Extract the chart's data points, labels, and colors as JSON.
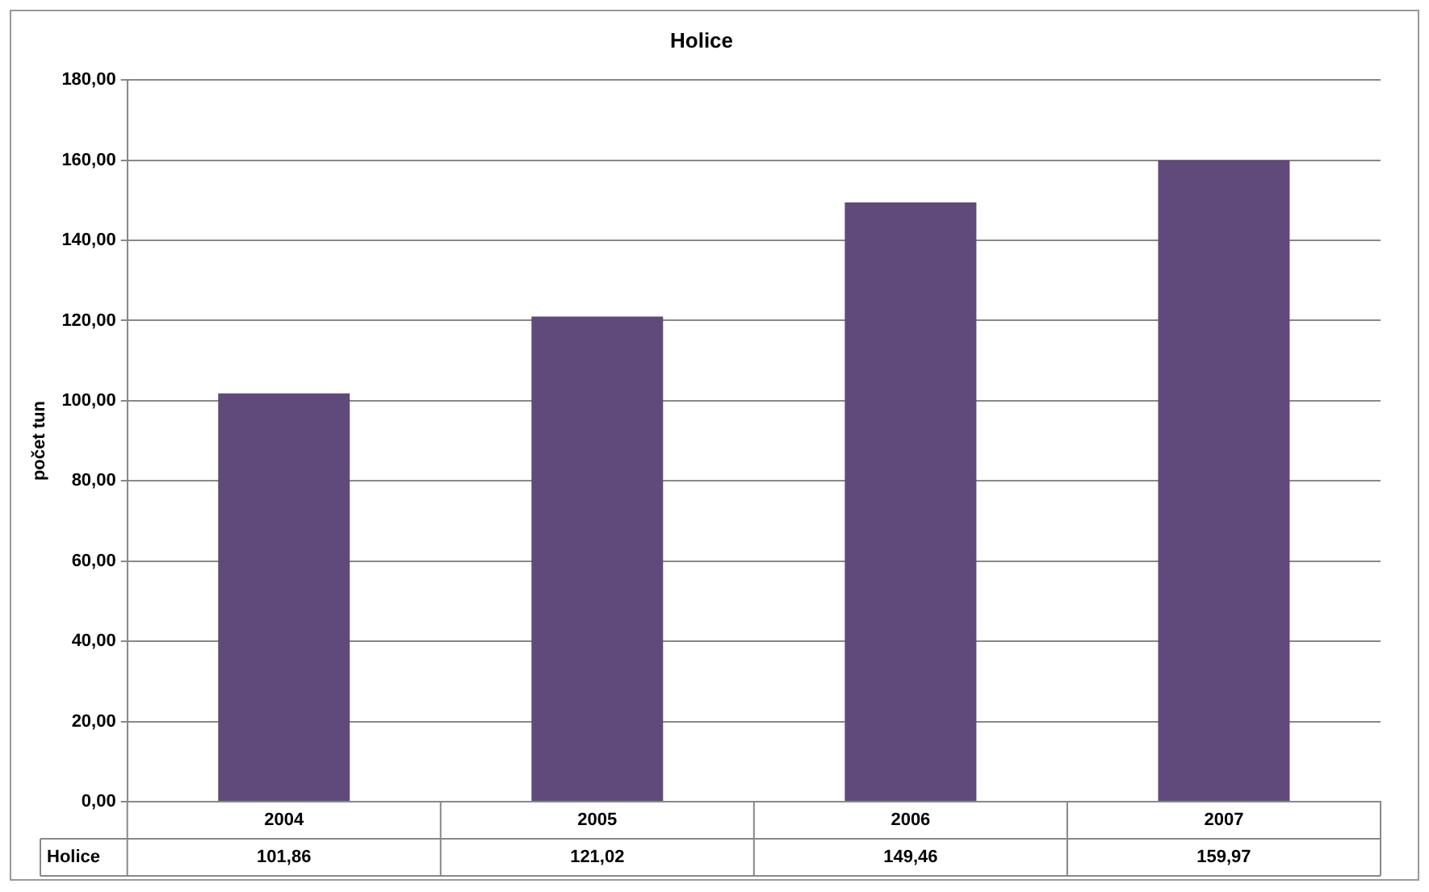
{
  "chart_data": {
    "type": "bar",
    "title": "Holice",
    "ylabel": "počet tun",
    "categories": [
      "2004",
      "2005",
      "2006",
      "2007"
    ],
    "series": [
      {
        "name": "Holice",
        "color": "#604a7b",
        "values": [
          101.86,
          121.02,
          149.46,
          159.97
        ],
        "value_labels": [
          "101,86",
          "121,02",
          "149,46",
          "159,97"
        ]
      }
    ],
    "ylim": [
      0,
      180
    ],
    "yticks": [
      {
        "value": 0,
        "label": "0,00"
      },
      {
        "value": 20,
        "label": "20,00"
      },
      {
        "value": 40,
        "label": "40,00"
      },
      {
        "value": 60,
        "label": "60,00"
      },
      {
        "value": 80,
        "label": "80,00"
      },
      {
        "value": 100,
        "label": "100,00"
      },
      {
        "value": 120,
        "label": "120,00"
      },
      {
        "value": 140,
        "label": "140,00"
      },
      {
        "value": 160,
        "label": "160,00"
      },
      {
        "value": 180,
        "label": "180,00"
      }
    ],
    "grid": "y",
    "legend": false
  }
}
